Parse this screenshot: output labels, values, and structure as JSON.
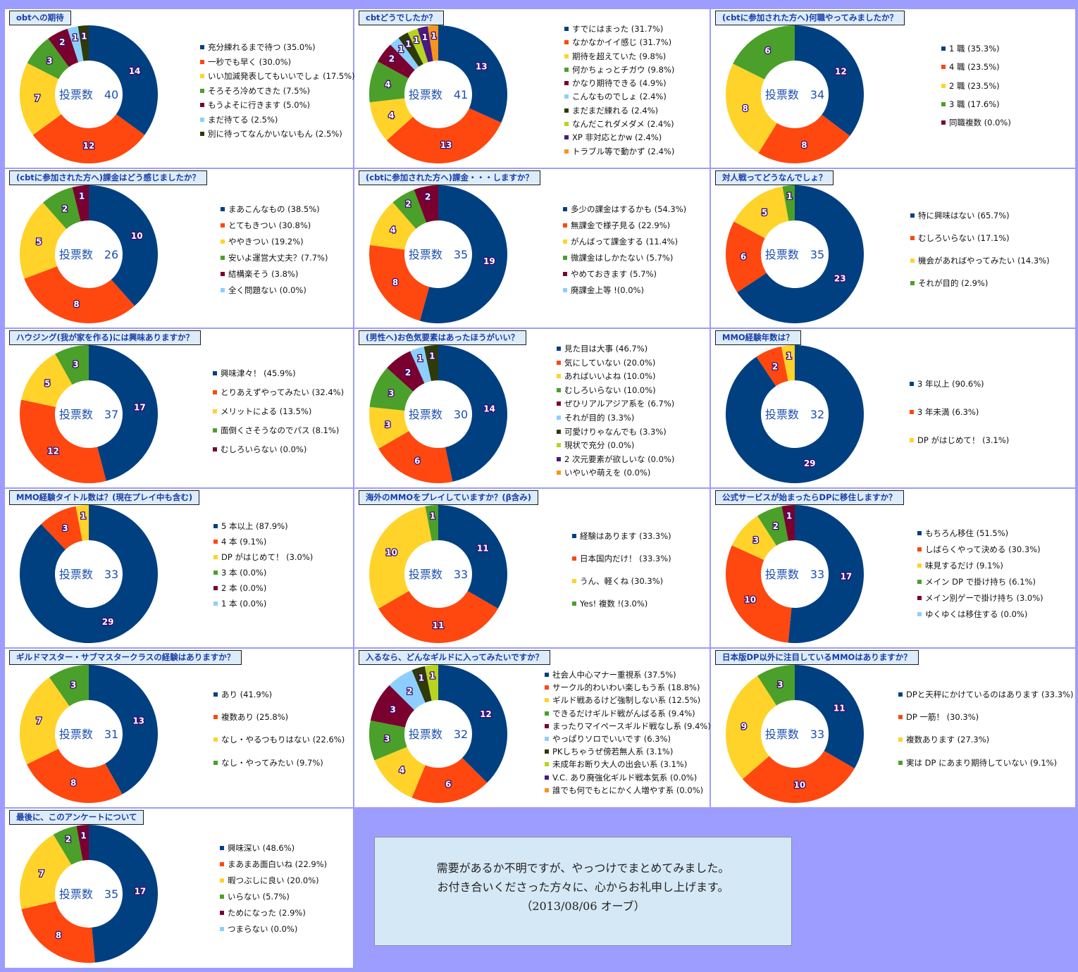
{
  "colors": [
    "#004080",
    "#ff4710",
    "#ffd32a",
    "#4aa02a",
    "#7a0030",
    "#8ccfff",
    "#2e3a0a",
    "#b8d420",
    "#4a1a80",
    "#f7941d"
  ],
  "center_label": "投票数",
  "note": {
    "line1": "需要があるか不明ですが、やっつけでまとめてみました。",
    "line2": "お付き合いくださった方々に、心からお礼申し上げます。",
    "line3": "（2013/08/06 オーブ）"
  },
  "chart_data": [
    {
      "type": "pie",
      "title": "obtへの期待",
      "total": 40,
      "categories": [
        "充分練れるまで待つ (35.0%)",
        "一秒でも早く (30.0%)",
        "いい加減発表してもいいでしょ (17.5%)",
        "そろそろ冷めてきた (7.5%)",
        "もうよそに行きます (5.0%)",
        "まだ待てる (2.5%)",
        "別に待ってなんかいないもん (2.5%)"
      ],
      "values": [
        14,
        12,
        7,
        3,
        2,
        1,
        1
      ]
    },
    {
      "type": "pie",
      "title": "cbtどうでしたか？",
      "total": 41,
      "categories": [
        "すでにはまった (31.7%)",
        "なかなかイイ感じ (31.7%)",
        "期待を超えていた (9.8%)",
        "何かちょっとチガウ (9.8%)",
        "かなり期待できる (4.9%)",
        "こんなものでしょ (2.4%)",
        "まだまだ練れる (2.4%)",
        "なんだこれダメダメ (2.4%)",
        "XP 非対応とかw (2.4%)",
        "トラブル等で動かず (2.4%)"
      ],
      "values": [
        13,
        13,
        4,
        4,
        2,
        1,
        1,
        1,
        1,
        1
      ]
    },
    {
      "type": "pie",
      "title": "(cbtに参加された方へ)何職やってみましたか？",
      "total": 34,
      "categories": [
        "1 職 (35.3%)",
        "4 職 (23.5%)",
        "2 職 (23.5%)",
        "3 職 (17.6%)",
        "同職複数 (0.0%)"
      ],
      "values": [
        12,
        8,
        8,
        6,
        0
      ]
    },
    {
      "type": "pie",
      "title": "(cbtに参加された方へ)課金はどう感じましたか？",
      "total": 26,
      "categories": [
        "まあこんなもの (38.5%)",
        "とてもきつい (30.8%)",
        "ややきつい (19.2%)",
        "安いよ運営大丈夫？(7.7%)",
        "結構楽そう (3.8%)",
        "全く問題ない (0.0%)"
      ],
      "values": [
        10,
        8,
        5,
        2,
        1,
        0
      ]
    },
    {
      "type": "pie",
      "title": "(cbtに参加された方へ)課金・・・しますか？",
      "total": 35,
      "categories": [
        "多少の課金はするかも (54.3%)",
        "無課金で様子見る (22.9%)",
        "がんばって課金する (11.4%)",
        "微課金はしかたない (5.7%)",
        "やめておきます (5.7%)",
        "廃課金上等 !(0.0%)"
      ],
      "values": [
        19,
        8,
        4,
        2,
        2,
        0
      ]
    },
    {
      "type": "pie",
      "title": "対人戦ってどうなんでしょ？",
      "total": 35,
      "categories": [
        "特に興味はない (65.7%)",
        "むしろいらない (17.1%)",
        "機会があればやってみたい (14.3%)",
        "それが目的 (2.9%)"
      ],
      "values": [
        23,
        6,
        5,
        1
      ]
    },
    {
      "type": "pie",
      "title": "ハウジング(我が家を作る)には興味ありますか？",
      "total": 37,
      "categories": [
        "興味津々！ (45.9%)",
        "とりあえずやってみたい (32.4%)",
        "メリットによる (13.5%)",
        "面倒くさそうなのでパス (8.1%)",
        "むしろいらない (0.0%)"
      ],
      "values": [
        17,
        12,
        5,
        3,
        0
      ]
    },
    {
      "type": "pie",
      "title": "(男性へ)お色気要素はあったほうがいい？",
      "total": 30,
      "categories": [
        "見た目は大事 (46.7%)",
        "気にしていない (20.0%)",
        "あればいいよね (10.0%)",
        "むしろいらない (10.0%)",
        "ぜひリアルアジア系を (6.7%)",
        "それが目的 (3.3%)",
        "可愛けりゃなんでも (3.3%)",
        "現状で充分 (0.0%)",
        "2 次元要素が欲しいな (0.0%)",
        "いやいや萌えを (0.0%)"
      ],
      "values": [
        14,
        6,
        3,
        3,
        2,
        1,
        1,
        0,
        0,
        0
      ]
    },
    {
      "type": "pie",
      "title": "MMO経験年数は？",
      "total": 32,
      "categories": [
        "3 年以上 (90.6%)",
        "3 年未満 (6.3%)",
        "DP がはじめて！ (3.1%)"
      ],
      "values": [
        29,
        2,
        1
      ]
    },
    {
      "type": "pie",
      "title": "MMO経験タイトル数は？(現在プレイ中も含む)",
      "total": 33,
      "categories": [
        "5 本以上 (87.9%)",
        "4 本 (9.1%)",
        "DP がはじめて！ (3.0%)",
        "3 本 (0.0%)",
        "2 本 (0.0%)",
        "1 本 (0.0%)"
      ],
      "values": [
        29,
        3,
        1,
        0,
        0,
        0
      ]
    },
    {
      "type": "pie",
      "title": "海外のMMOをプレイしていますか？(β含み)",
      "total": 33,
      "categories": [
        "経験はあります (33.3%)",
        "日本国内だけ！ (33.3%)",
        "うん、軽くね (30.3%)",
        "Yes! 複数 !(3.0%)"
      ],
      "values": [
        11,
        11,
        10,
        1
      ]
    },
    {
      "type": "pie",
      "title": "公式サービスが始まったらDPに移住しますか？",
      "total": 33,
      "categories": [
        "もちろん移住 (51.5%)",
        "しばらくやって決める (30.3%)",
        "味見するだけ (9.1%)",
        "メイン DP で掛け持ち (6.1%)",
        "メイン別ゲーで掛け持ち (3.0%)",
        "ゆくゆくは移住する (0.0%)"
      ],
      "values": [
        17,
        10,
        3,
        2,
        1,
        0
      ]
    },
    {
      "type": "pie",
      "title": "ギルドマスター・サブマスタークラスの経験はありますか？",
      "total": 31,
      "categories": [
        "あり (41.9%)",
        "複数あり (25.8%)",
        "なし・やるつもりはない (22.6%)",
        "なし・やってみたい (9.7%)"
      ],
      "values": [
        13,
        8,
        7,
        3
      ]
    },
    {
      "type": "pie",
      "title": "入るなら、どんなギルドに入ってみたいですか？",
      "total": 32,
      "categories": [
        "社会人中心マナー重視系 (37.5%)",
        "サークル的わいわい楽しもう系 (18.8%)",
        "ギルド戦あるけど強制しない系 (12.5%)",
        "できるだけギルド戦がんばる系 (9.4%)",
        "まったりマイペースギルド戦なし系 (9.4%)",
        "やっぱりソロでいいです (6.3%)",
        "PKしちゃうぜ傍若無人系 (3.1%)",
        "未成年お断り大人の出会い系 (3.1%)",
        "V.C. あり廃強化ギルド戦本気系 (0.0%)",
        "誰でも何でもとにかく人増やす系 (0.0%)"
      ],
      "values": [
        12,
        6,
        4,
        3,
        3,
        2,
        1,
        1,
        0,
        0
      ]
    },
    {
      "type": "pie",
      "title": "日本版DP以外に注目しているMMOはありますか？",
      "total": 33,
      "categories": [
        "DPと天秤にかけているのはあります (33.3%)",
        "DP 一筋！ (30.3%)",
        "複数あります (27.3%)",
        "実は DP にあまり期待していない (9.1%)"
      ],
      "values": [
        11,
        10,
        9,
        3
      ]
    },
    {
      "type": "pie",
      "title": "最後に、このアンケートについて",
      "total": 35,
      "categories": [
        "興味深い (48.6%)",
        "まあまあ面白いね (22.9%)",
        "暇つぶしに良い (20.0%)",
        "いらない (5.7%)",
        "ためになった (2.9%)",
        "つまらない (0.0%)"
      ],
      "values": [
        17,
        8,
        7,
        2,
        1,
        0
      ]
    }
  ]
}
